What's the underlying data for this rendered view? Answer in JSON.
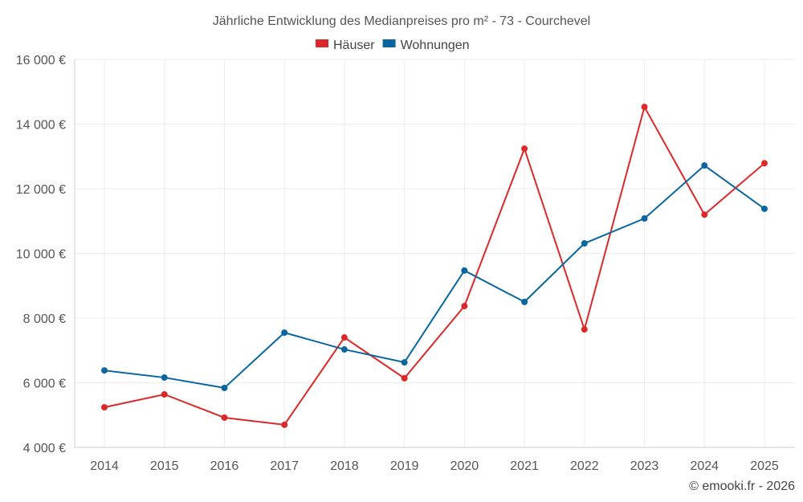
{
  "chart_data": {
    "type": "line",
    "title": "Jährliche Entwicklung des Medianpreises pro m² - 73 - Courchevel",
    "xlabel": "",
    "ylabel": "",
    "categories": [
      "2014",
      "2015",
      "2016",
      "2017",
      "2018",
      "2019",
      "2020",
      "2021",
      "2022",
      "2023",
      "2024",
      "2025"
    ],
    "series": [
      {
        "name": "Häuser",
        "color": "#dc2828",
        "values": [
          5240,
          5640,
          4920,
          4700,
          7400,
          6140,
          8370,
          13240,
          7650,
          14530,
          11200,
          12790
        ]
      },
      {
        "name": "Wohnungen",
        "color": "#0a66a0",
        "values": [
          6380,
          6160,
          5840,
          7550,
          7030,
          6630,
          9470,
          8500,
          10310,
          11080,
          12720,
          11380
        ]
      }
    ],
    "ylim": [
      4000,
      16000
    ],
    "yticks": [
      4000,
      6000,
      8000,
      10000,
      12000,
      14000,
      16000
    ],
    "ytick_labels": [
      "4 000 €",
      "6 000 €",
      "8 000 €",
      "10 000 €",
      "12 000 €",
      "14 000 €",
      "16 000 €"
    ],
    "grid": true,
    "legend_position": "top-center"
  },
  "footer": {
    "copyright": "© emooki.fr - 2026"
  }
}
